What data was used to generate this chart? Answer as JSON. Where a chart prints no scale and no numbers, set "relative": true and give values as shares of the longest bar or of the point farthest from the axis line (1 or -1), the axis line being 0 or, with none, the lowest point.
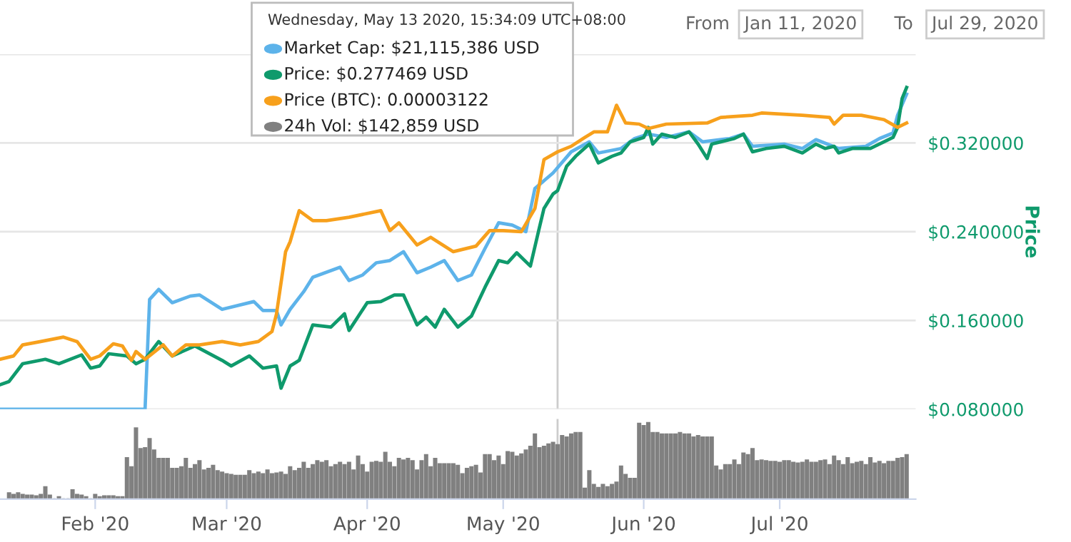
{
  "chart_data": [
    {
      "type": "line",
      "ylabel": "Price",
      "grid": "y",
      "tick_labels": "y",
      "xlim": [
        "2020-01-11",
        "2020-07-31"
      ],
      "ylim": [
        0.08,
        0.4
      ],
      "yticks": [
        {
          "value": 0.08,
          "label": "$0.080000"
        },
        {
          "value": 0.16,
          "label": "$0.160000"
        },
        {
          "value": 0.24,
          "label": "$0.240000"
        },
        {
          "value": 0.32,
          "label": "$0.320000"
        },
        {
          "value": 0.4,
          "label": null
        }
      ],
      "ref_lines": [
        {
          "axis": "x",
          "value": "2020-05-13",
          "color": "#cccccc"
        }
      ],
      "annotations": [
        "Wednesday, May 13 2020, 15:34:09 UTC+08:00",
        "Market Cap: $21,115,386 USD",
        "Price: $0.277469 USD",
        "Price (BTC): 0.00003122",
        "24h Vol: $142,859 USD",
        "From",
        "Jan 11, 2020",
        "To",
        "Jul 29, 2020"
      ],
      "series": [
        {
          "color": "#5db3ea",
          "x": [
            "2020-01-11",
            "2020-02-12",
            "2020-02-13",
            "2020-02-15",
            "2020-02-18",
            "2020-02-22",
            "2020-02-24",
            "2020-02-29",
            "2020-03-07",
            "2020-03-09",
            "2020-03-12",
            "2020-03-13",
            "2020-03-15",
            "2020-03-18",
            "2020-03-20",
            "2020-03-26",
            "2020-03-28",
            "2020-03-31",
            "2020-04-03",
            "2020-04-06",
            "2020-04-09",
            "2020-04-12",
            "2020-04-15",
            "2020-04-18",
            "2020-04-21",
            "2020-04-24",
            "2020-04-27",
            "2020-04-30",
            "2020-05-03",
            "2020-05-06",
            "2020-05-08",
            "2020-05-12",
            "2020-05-16",
            "2020-05-20",
            "2020-05-22",
            "2020-05-27",
            "2020-05-30",
            "2020-06-02",
            "2020-06-06",
            "2020-06-11",
            "2020-06-14",
            "2020-06-20",
            "2020-06-23",
            "2020-06-25",
            "2020-07-02",
            "2020-07-06",
            "2020-07-09",
            "2020-07-14",
            "2020-07-20",
            "2020-07-23",
            "2020-07-26",
            "2020-07-27",
            "2020-07-29"
          ],
          "values": [
            0.08,
            0.08,
            0.179,
            0.188,
            0.176,
            0.182,
            0.183,
            0.17,
            0.177,
            0.169,
            0.169,
            0.156,
            0.17,
            0.186,
            0.199,
            0.208,
            0.196,
            0.201,
            0.212,
            0.214,
            0.222,
            0.203,
            0.208,
            0.214,
            0.196,
            0.201,
            0.225,
            0.248,
            0.246,
            0.24,
            0.279,
            0.293,
            0.312,
            0.321,
            0.311,
            0.315,
            0.324,
            0.328,
            0.325,
            0.33,
            0.321,
            0.324,
            0.328,
            0.317,
            0.319,
            0.315,
            0.323,
            0.315,
            0.317,
            0.324,
            0.329,
            0.345,
            0.364
          ]
        },
        {
          "color": "#0f9a6c",
          "x": [
            "2020-01-11",
            "2020-01-13",
            "2020-01-16",
            "2020-01-21",
            "2020-01-24",
            "2020-01-29",
            "2020-01-31",
            "2020-02-02",
            "2020-02-04",
            "2020-02-08",
            "2020-02-10",
            "2020-02-12",
            "2020-02-15",
            "2020-02-18",
            "2020-02-23",
            "2020-02-29",
            "2020-03-02",
            "2020-03-06",
            "2020-03-09",
            "2020-03-12",
            "2020-03-13",
            "2020-03-15",
            "2020-03-17",
            "2020-03-20",
            "2020-03-24",
            "2020-03-27",
            "2020-03-28",
            "2020-04-01",
            "2020-04-04",
            "2020-04-07",
            "2020-04-09",
            "2020-04-12",
            "2020-04-14",
            "2020-04-16",
            "2020-04-18",
            "2020-04-21",
            "2020-04-24",
            "2020-04-27",
            "2020-04-30",
            "2020-05-02",
            "2020-05-04",
            "2020-05-07",
            "2020-05-09",
            "2020-05-10",
            "2020-05-12",
            "2020-05-13",
            "2020-05-15",
            "2020-05-17",
            "2020-05-20",
            "2020-05-22",
            "2020-05-25",
            "2020-05-27",
            "2020-05-29",
            "2020-06-01",
            "2020-06-02",
            "2020-06-03",
            "2020-06-05",
            "2020-06-08",
            "2020-06-11",
            "2020-06-13",
            "2020-06-15",
            "2020-06-16",
            "2020-06-18",
            "2020-06-21",
            "2020-06-23",
            "2020-06-25",
            "2020-06-28",
            "2020-07-02",
            "2020-07-06",
            "2020-07-09",
            "2020-07-11",
            "2020-07-13",
            "2020-07-14",
            "2020-07-17",
            "2020-07-21",
            "2020-07-24",
            "2020-07-26",
            "2020-07-27",
            "2020-07-28",
            "2020-07-29"
          ],
          "values": [
            0.102,
            0.105,
            0.121,
            0.125,
            0.121,
            0.129,
            0.117,
            0.119,
            0.13,
            0.128,
            0.121,
            0.125,
            0.141,
            0.128,
            0.137,
            0.124,
            0.119,
            0.128,
            0.117,
            0.119,
            0.099,
            0.119,
            0.124,
            0.156,
            0.154,
            0.166,
            0.151,
            0.176,
            0.177,
            0.183,
            0.183,
            0.156,
            0.163,
            0.154,
            0.17,
            0.154,
            0.164,
            0.19,
            0.214,
            0.212,
            0.221,
            0.209,
            0.244,
            0.261,
            0.274,
            0.277,
            0.299,
            0.308,
            0.319,
            0.302,
            0.308,
            0.311,
            0.321,
            0.325,
            0.334,
            0.319,
            0.328,
            0.325,
            0.33,
            0.319,
            0.306,
            0.319,
            0.321,
            0.324,
            0.328,
            0.312,
            0.315,
            0.317,
            0.311,
            0.319,
            0.315,
            0.317,
            0.311,
            0.315,
            0.315,
            0.321,
            0.325,
            0.334,
            0.36,
            0.37
          ]
        },
        {
          "color": "#f7a01c",
          "x": [
            "2020-01-11",
            "2020-01-14",
            "2020-01-16",
            "2020-01-20",
            "2020-01-25",
            "2020-01-28",
            "2020-01-31",
            "2020-02-02",
            "2020-02-05",
            "2020-02-07",
            "2020-02-09",
            "2020-02-10",
            "2020-02-12",
            "2020-02-16",
            "2020-02-18",
            "2020-02-21",
            "2020-02-24",
            "2020-02-29",
            "2020-03-04",
            "2020-03-08",
            "2020-03-11",
            "2020-03-12",
            "2020-03-14",
            "2020-03-15",
            "2020-03-17",
            "2020-03-20",
            "2020-03-23",
            "2020-03-28",
            "2020-04-04",
            "2020-04-06",
            "2020-04-08",
            "2020-04-12",
            "2020-04-15",
            "2020-04-20",
            "2020-04-25",
            "2020-04-28",
            "2020-05-01",
            "2020-05-05",
            "2020-05-08",
            "2020-05-10",
            "2020-05-13",
            "2020-05-16",
            "2020-05-19",
            "2020-05-21",
            "2020-05-24",
            "2020-05-26",
            "2020-05-28",
            "2020-05-31",
            "2020-06-02",
            "2020-06-06",
            "2020-06-15",
            "2020-06-18",
            "2020-06-25",
            "2020-06-27",
            "2020-07-06",
            "2020-07-12",
            "2020-07-13",
            "2020-07-15",
            "2020-07-19",
            "2020-07-24",
            "2020-07-27",
            "2020-07-29"
          ],
          "values": [
            0.125,
            0.128,
            0.138,
            0.141,
            0.145,
            0.141,
            0.125,
            0.128,
            0.139,
            0.137,
            0.124,
            0.132,
            0.125,
            0.138,
            0.128,
            0.138,
            0.138,
            0.141,
            0.138,
            0.141,
            0.15,
            0.166,
            0.222,
            0.231,
            0.259,
            0.25,
            0.25,
            0.253,
            0.259,
            0.241,
            0.248,
            0.228,
            0.235,
            0.222,
            0.227,
            0.241,
            0.241,
            0.24,
            0.261,
            0.305,
            0.312,
            0.317,
            0.325,
            0.33,
            0.33,
            0.354,
            0.338,
            0.337,
            0.333,
            0.337,
            0.338,
            0.343,
            0.345,
            0.347,
            0.345,
            0.343,
            0.337,
            0.345,
            0.345,
            0.341,
            0.334,
            0.338
          ]
        }
      ]
    },
    {
      "type": "bar",
      "relative": true,
      "tick_labels": "x",
      "xlim": [
        "2020-01-11",
        "2020-07-31"
      ],
      "xticks": [
        {
          "value": "2020-02-01",
          "label": "Feb '20"
        },
        {
          "value": "2020-03-01",
          "label": "Mar '20"
        },
        {
          "value": "2020-04-01",
          "label": "Apr '20"
        },
        {
          "value": "2020-05-01",
          "label": "May '20"
        },
        {
          "value": "2020-06-01",
          "label": "Jun '20"
        },
        {
          "value": "2020-07-01",
          "label": "Jul '20"
        }
      ],
      "ref_lines": [
        {
          "axis": "x",
          "value": "2020-05-13",
          "color": "#cccccc"
        }
      ],
      "color": "#808080",
      "x": [
        "2020-01-13",
        "2020-01-14",
        "2020-01-15",
        "2020-01-16",
        "2020-01-17",
        "2020-01-18",
        "2020-01-19",
        "2020-01-20",
        "2020-01-21",
        "2020-01-22",
        "2020-01-23",
        "2020-01-24",
        "2020-01-25",
        "2020-01-26",
        "2020-01-27",
        "2020-01-28",
        "2020-01-29",
        "2020-01-30",
        "2020-01-31",
        "2020-02-01",
        "2020-02-02",
        "2020-02-03",
        "2020-02-04",
        "2020-02-05",
        "2020-02-06",
        "2020-02-07",
        "2020-02-08",
        "2020-02-09",
        "2020-02-10",
        "2020-02-11",
        "2020-02-12",
        "2020-02-13",
        "2020-02-14",
        "2020-02-15",
        "2020-02-16",
        "2020-02-17",
        "2020-02-18",
        "2020-02-19",
        "2020-02-20",
        "2020-02-21",
        "2020-02-22",
        "2020-02-23",
        "2020-02-24",
        "2020-02-25",
        "2020-02-26",
        "2020-02-27",
        "2020-02-28",
        "2020-02-29",
        "2020-03-01",
        "2020-03-02",
        "2020-03-03",
        "2020-03-04",
        "2020-03-05",
        "2020-03-06",
        "2020-03-07",
        "2020-03-08",
        "2020-03-09",
        "2020-03-10",
        "2020-03-11",
        "2020-03-12",
        "2020-03-13",
        "2020-03-14",
        "2020-03-15",
        "2020-03-16",
        "2020-03-17",
        "2020-03-18",
        "2020-03-19",
        "2020-03-20",
        "2020-03-21",
        "2020-03-22",
        "2020-03-23",
        "2020-03-24",
        "2020-03-25",
        "2020-03-26",
        "2020-03-27",
        "2020-03-28",
        "2020-03-29",
        "2020-03-30",
        "2020-03-31",
        "2020-04-01",
        "2020-04-02",
        "2020-04-03",
        "2020-04-04",
        "2020-04-05",
        "2020-04-06",
        "2020-04-07",
        "2020-04-08",
        "2020-04-09",
        "2020-04-10",
        "2020-04-11",
        "2020-04-12",
        "2020-04-13",
        "2020-04-14",
        "2020-04-15",
        "2020-04-16",
        "2020-04-17",
        "2020-04-18",
        "2020-04-19",
        "2020-04-20",
        "2020-04-21",
        "2020-04-22",
        "2020-04-23",
        "2020-04-24",
        "2020-04-25",
        "2020-04-26",
        "2020-04-27",
        "2020-04-28",
        "2020-04-29",
        "2020-04-30",
        "2020-05-01",
        "2020-05-02",
        "2020-05-03",
        "2020-05-04",
        "2020-05-05",
        "2020-05-06",
        "2020-05-07",
        "2020-05-08",
        "2020-05-09",
        "2020-05-10",
        "2020-05-11",
        "2020-05-12",
        "2020-05-13",
        "2020-05-14",
        "2020-05-15",
        "2020-05-16",
        "2020-05-17",
        "2020-05-18",
        "2020-05-19",
        "2020-05-20",
        "2020-05-21",
        "2020-05-22",
        "2020-05-23",
        "2020-05-24",
        "2020-05-25",
        "2020-05-26",
        "2020-05-27",
        "2020-05-28",
        "2020-05-29",
        "2020-05-30",
        "2020-05-31",
        "2020-06-01",
        "2020-06-02",
        "2020-06-03",
        "2020-06-04",
        "2020-06-05",
        "2020-06-06",
        "2020-06-07",
        "2020-06-08",
        "2020-06-09",
        "2020-06-10",
        "2020-06-11",
        "2020-06-12",
        "2020-06-13",
        "2020-06-14",
        "2020-06-15",
        "2020-06-16",
        "2020-06-17",
        "2020-06-18",
        "2020-06-19",
        "2020-06-20",
        "2020-06-21",
        "2020-06-22",
        "2020-06-23",
        "2020-06-24",
        "2020-06-25",
        "2020-06-26",
        "2020-06-27",
        "2020-06-28",
        "2020-06-29",
        "2020-06-30",
        "2020-07-01",
        "2020-07-02",
        "2020-07-03",
        "2020-07-04",
        "2020-07-05",
        "2020-07-06",
        "2020-07-07",
        "2020-07-08",
        "2020-07-09",
        "2020-07-10",
        "2020-07-11",
        "2020-07-12",
        "2020-07-13",
        "2020-07-14",
        "2020-07-15",
        "2020-07-16",
        "2020-07-17",
        "2020-07-18",
        "2020-07-19",
        "2020-07-20",
        "2020-07-21",
        "2020-07-22",
        "2020-07-23",
        "2020-07-24",
        "2020-07-25",
        "2020-07-26",
        "2020-07-27",
        "2020-07-28",
        "2020-07-29"
      ],
      "values": [
        0.08,
        0.06,
        0.08,
        0.06,
        0.05,
        0.05,
        0.04,
        0.06,
        0.16,
        0.05,
        0,
        0.03,
        0,
        0,
        0.12,
        0.06,
        0.05,
        0.03,
        0,
        0.06,
        0.03,
        0.04,
        0.04,
        0.04,
        0.03,
        0.03,
        0.54,
        0.42,
        0.93,
        0.66,
        0.67,
        0.79,
        0.64,
        0.53,
        0.53,
        0.53,
        0.4,
        0.4,
        0.42,
        0.53,
        0.4,
        0.45,
        0.5,
        0.38,
        0.4,
        0.44,
        0.37,
        0.35,
        0.33,
        0.32,
        0.31,
        0.31,
        0.31,
        0.37,
        0.33,
        0.35,
        0.33,
        0.38,
        0.33,
        0.34,
        0.35,
        0.32,
        0.42,
        0.37,
        0.4,
        0.48,
        0.4,
        0.45,
        0.5,
        0.48,
        0.5,
        0.42,
        0.45,
        0.48,
        0.45,
        0.48,
        0.38,
        0.56,
        0.45,
        0.35,
        0.48,
        0.49,
        0.48,
        0.61,
        0.48,
        0.42,
        0.53,
        0.51,
        0.53,
        0.5,
        0.38,
        0.5,
        0.58,
        0.42,
        0.53,
        0.46,
        0.46,
        0.46,
        0.46,
        0.44,
        0.33,
        0.4,
        0.42,
        0.44,
        0.34,
        0.58,
        0.58,
        0.5,
        0.56,
        0.45,
        0.62,
        0.61,
        0.56,
        0.59,
        0.64,
        0.69,
        0.85,
        0.67,
        0.69,
        0.72,
        0.74,
        0.71,
        0.83,
        0.81,
        0.85,
        0.87,
        0.87,
        0.14,
        0.37,
        0.19,
        0.15,
        0.19,
        0.16,
        0.19,
        0.22,
        0.43,
        0.32,
        0.27,
        0.27,
        0.99,
        0.96,
        1,
        0.87,
        0.87,
        0.85,
        0.85,
        0.85,
        0.85,
        0.87,
        0.85,
        0.85,
        0.81,
        0.83,
        0.81,
        0.81,
        0.81,
        0.43,
        0.38,
        0.45,
        0.45,
        0.51,
        0.45,
        0.6,
        0.58,
        0.66,
        0.5,
        0.51,
        0.5,
        0.49,
        0.49,
        0.48,
        0.5,
        0.5,
        0.48,
        0.47,
        0.48,
        0.51,
        0.48,
        0.48,
        0.5,
        0.51,
        0.45,
        0.56,
        0.5,
        0.45,
        0.54,
        0.46,
        0.48,
        0.49,
        0.45,
        0.54,
        0.47,
        0.49,
        0.46,
        0.49,
        0.49,
        0.53,
        0.54,
        0.58
      ]
    }
  ]
}
